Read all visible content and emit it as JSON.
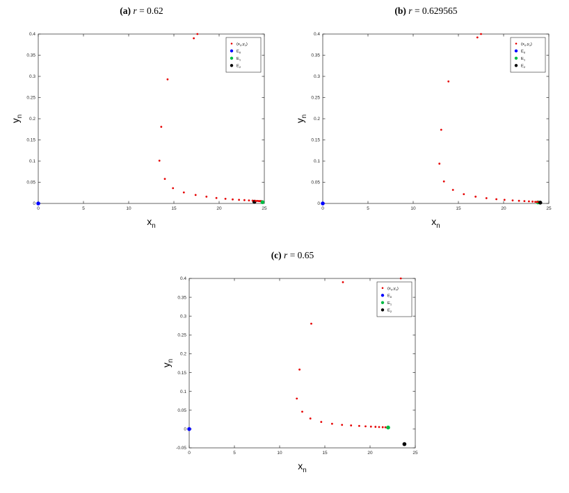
{
  "page": {
    "background": "#ffffff"
  },
  "chart_data": [
    {
      "type": "scatter",
      "panel": "a",
      "title_bold": "(a)",
      "title_var": "r",
      "title_rest": " = 0.62",
      "xlabel": "x_n",
      "ylabel": "y_n",
      "xlim": [
        0,
        25
      ],
      "ylim": [
        0,
        0.4
      ],
      "xticks": [
        0,
        5,
        10,
        15,
        20,
        25
      ],
      "yticks": [
        0,
        0.05,
        0.1,
        0.15,
        0.2,
        0.25,
        0.3,
        0.35,
        0.4
      ],
      "legend": {
        "position": "top-right",
        "entries": [
          {
            "label": "(x_n,y_n)",
            "color": "#e60000",
            "marker_r": 1.3
          },
          {
            "label": "E_0",
            "color": "#0000ff",
            "marker_r": 2.2
          },
          {
            "label": "E_1",
            "color": "#00bb44",
            "marker_r": 2.2
          },
          {
            "label": "E_2",
            "color": "#000000",
            "marker_r": 2.2
          }
        ]
      },
      "series": [
        {
          "name": "E2",
          "color": "#000000",
          "marker_r": 2.8,
          "points": [
            [
              23.9,
              0.004
            ]
          ]
        },
        {
          "name": "trajectory",
          "color": "#e60000",
          "marker_r": 1.4,
          "points": [
            [
              17.6,
              0.4
            ],
            [
              17.2,
              0.39
            ],
            [
              14.3,
              0.293
            ],
            [
              13.6,
              0.181
            ],
            [
              13.4,
              0.101
            ],
            [
              14.0,
              0.058
            ],
            [
              14.9,
              0.036
            ],
            [
              16.1,
              0.026
            ],
            [
              17.4,
              0.02
            ],
            [
              18.6,
              0.016
            ],
            [
              19.7,
              0.013
            ],
            [
              20.7,
              0.011
            ],
            [
              21.5,
              0.0095
            ],
            [
              22.2,
              0.0085
            ],
            [
              22.8,
              0.0078
            ],
            [
              23.3,
              0.0072
            ],
            [
              23.7,
              0.0067
            ],
            [
              24.0,
              0.0063
            ],
            [
              24.2,
              0.006
            ],
            [
              24.35,
              0.0057
            ],
            [
              24.45,
              0.0056
            ],
            [
              24.52,
              0.0055
            ],
            [
              24.58,
              0.0054
            ],
            [
              24.63,
              0.0054
            ],
            [
              24.68,
              0.0053
            ],
            [
              24.72,
              0.0053
            ],
            [
              24.75,
              0.0052
            ]
          ]
        },
        {
          "name": "E1",
          "color": "#00bb44",
          "marker_r": 2.8,
          "points": [
            [
              24.8,
              0.003
            ]
          ]
        },
        {
          "name": "E0",
          "color": "#0000ff",
          "marker_r": 2.8,
          "points": [
            [
              0,
              0
            ]
          ]
        }
      ]
    },
    {
      "type": "scatter",
      "panel": "b",
      "title_bold": "(b)",
      "title_var": "r",
      "title_rest": " = 0.629565",
      "xlabel": "x_n",
      "ylabel": "y_n",
      "xlim": [
        0,
        25
      ],
      "ylim": [
        0,
        0.4
      ],
      "xticks": [
        0,
        5,
        10,
        15,
        20,
        25
      ],
      "yticks": [
        0,
        0.05,
        0.1,
        0.15,
        0.2,
        0.25,
        0.3,
        0.35,
        0.4
      ],
      "legend": {
        "position": "top-right",
        "entries": [
          {
            "label": "(x_n,y_n)",
            "color": "#e60000",
            "marker_r": 1.3
          },
          {
            "label": "E_0",
            "color": "#0000ff",
            "marker_r": 2.2
          },
          {
            "label": "E_1",
            "color": "#00bb44",
            "marker_r": 2.2
          },
          {
            "label": "E_2",
            "color": "#000000",
            "marker_r": 2.2
          }
        ]
      },
      "series": [
        {
          "name": "E1",
          "color": "#00bb44",
          "marker_r": 2.8,
          "points": [
            [
              23.8,
              0.0025
            ]
          ]
        },
        {
          "name": "trajectory",
          "color": "#e60000",
          "marker_r": 1.4,
          "points": [
            [
              17.5,
              0.4
            ],
            [
              17.1,
              0.392
            ],
            [
              13.9,
              0.288
            ],
            [
              13.1,
              0.174
            ],
            [
              12.9,
              0.094
            ],
            [
              13.4,
              0.052
            ],
            [
              14.4,
              0.032
            ],
            [
              15.6,
              0.022
            ],
            [
              16.9,
              0.016
            ],
            [
              18.1,
              0.0125
            ],
            [
              19.2,
              0.01
            ],
            [
              20.1,
              0.0085
            ],
            [
              21.0,
              0.0072
            ],
            [
              21.7,
              0.0062
            ],
            [
              22.3,
              0.0055
            ],
            [
              22.8,
              0.0049
            ],
            [
              23.2,
              0.0044
            ],
            [
              23.5,
              0.004
            ],
            [
              23.7,
              0.0037
            ],
            [
              23.85,
              0.0034
            ],
            [
              23.9,
              0.0033
            ],
            [
              23.95,
              0.0032
            ],
            [
              24.0,
              0.0031
            ]
          ]
        },
        {
          "name": "E2",
          "color": "#000000",
          "marker_r": 2.8,
          "points": [
            [
              24.05,
              0.002
            ]
          ]
        },
        {
          "name": "E0",
          "color": "#0000ff",
          "marker_r": 2.8,
          "points": [
            [
              0,
              0
            ]
          ]
        }
      ]
    },
    {
      "type": "scatter",
      "panel": "c",
      "title_bold": "(c)",
      "title_var": "r",
      "title_rest": " = 0.65",
      "xlabel": "x_n",
      "ylabel": "y_n",
      "xlim": [
        0,
        25
      ],
      "ylim": [
        -0.05,
        0.4
      ],
      "xticks": [
        0,
        5,
        10,
        15,
        20,
        25
      ],
      "yticks": [
        -0.05,
        0,
        0.05,
        0.1,
        0.15,
        0.2,
        0.25,
        0.3,
        0.35,
        0.4
      ],
      "legend": {
        "position": "top-right",
        "entries": [
          {
            "label": "(x_n,y_n)",
            "color": "#e60000",
            "marker_r": 1.3
          },
          {
            "label": "E_0",
            "color": "#0000ff",
            "marker_r": 2.2
          },
          {
            "label": "E_1",
            "color": "#00bb44",
            "marker_r": 2.2
          },
          {
            "label": "E_2",
            "color": "#000000",
            "marker_r": 2.2
          }
        ]
      },
      "series": [
        {
          "name": "trajectory",
          "color": "#e60000",
          "marker_r": 1.4,
          "points": [
            [
              23.4,
              0.4
            ],
            [
              17.0,
              0.39
            ],
            [
              13.5,
              0.28
            ],
            [
              12.2,
              0.158
            ],
            [
              11.9,
              0.081
            ],
            [
              12.5,
              0.046
            ],
            [
              13.4,
              0.028
            ],
            [
              14.6,
              0.019
            ],
            [
              15.8,
              0.014
            ],
            [
              16.9,
              0.011
            ],
            [
              17.9,
              0.0095
            ],
            [
              18.8,
              0.0082
            ],
            [
              19.5,
              0.0072
            ],
            [
              20.1,
              0.0064
            ],
            [
              20.6,
              0.0058
            ],
            [
              21.0,
              0.0053
            ],
            [
              21.4,
              0.0049
            ],
            [
              21.7,
              0.0046
            ],
            [
              21.9,
              0.0044
            ]
          ]
        },
        {
          "name": "E1",
          "color": "#00bb44",
          "marker_r": 2.8,
          "points": [
            [
              22.0,
              0.004
            ]
          ]
        },
        {
          "name": "E2",
          "color": "#000000",
          "marker_r": 2.8,
          "points": [
            [
              23.8,
              -0.04
            ]
          ]
        },
        {
          "name": "E0",
          "color": "#0000ff",
          "marker_r": 2.8,
          "points": [
            [
              0,
              0
            ]
          ]
        }
      ]
    }
  ]
}
